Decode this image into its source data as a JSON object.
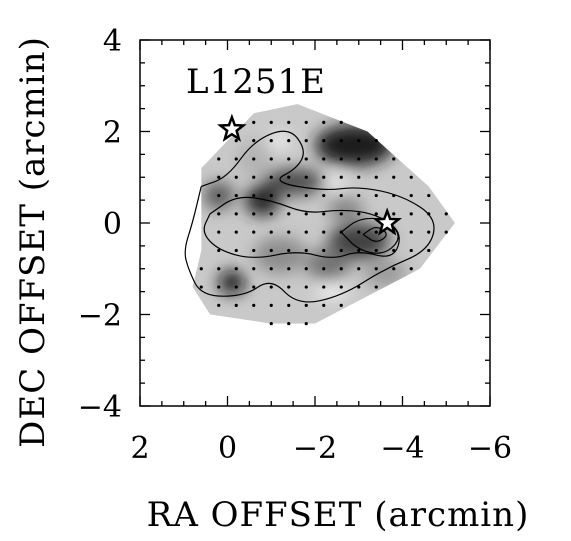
{
  "chart_data": {
    "type": "heatmap",
    "title": "L1251E",
    "xlabel": "RA OFFSET (arcmin)",
    "ylabel": "DEC OFFSET (arcmin)",
    "xlim": [
      2,
      -6
    ],
    "ylim": [
      -4,
      4
    ],
    "xticks": [
      2,
      0,
      -2,
      -4,
      -6
    ],
    "yticks": [
      4,
      2,
      0,
      -2,
      -4
    ],
    "xtick_labels": [
      "2",
      "0",
      "−2",
      "−4",
      "−6"
    ],
    "ytick_labels": [
      "4",
      "2",
      "0",
      "−2",
      "−4"
    ],
    "colormap": "grayscale",
    "map_outline": [
      [
        0.6,
        1.2
      ],
      [
        -0.6,
        2.4
      ],
      [
        -1.6,
        2.6
      ],
      [
        -3.2,
        2.0
      ],
      [
        -4.6,
        0.8
      ],
      [
        -5.2,
        0.0
      ],
      [
        -4.4,
        -1.0
      ],
      [
        -2.0,
        -2.2
      ],
      [
        -1.0,
        -2.2
      ],
      [
        0.4,
        -2.0
      ],
      [
        0.8,
        -1.4
      ],
      [
        0.6,
        -0.6
      ],
      [
        0.6,
        0.4
      ]
    ],
    "dark_patches": [
      {
        "x": -2.9,
        "y": 1.7,
        "rx": 0.9,
        "ry": 0.45,
        "level": 0.12
      },
      {
        "x": -1.5,
        "y": 0.9,
        "rx": 0.7,
        "ry": 0.3,
        "level": 0.3
      },
      {
        "x": -0.8,
        "y": 0.5,
        "rx": 0.4,
        "ry": 0.35,
        "level": 0.15
      },
      {
        "x": 0.2,
        "y": 0.6,
        "rx": 0.35,
        "ry": 0.3,
        "level": 0.35
      },
      {
        "x": -3.0,
        "y": -0.4,
        "rx": 0.7,
        "ry": 0.4,
        "level": 0.25
      },
      {
        "x": -0.1,
        "y": -1.3,
        "rx": 0.3,
        "ry": 0.25,
        "level": 0.05
      },
      {
        "x": -2.3,
        "y": -0.9,
        "rx": 0.5,
        "ry": 0.35,
        "level": 0.45
      },
      {
        "x": -1.2,
        "y": -0.7,
        "rx": 0.6,
        "ry": 0.4,
        "level": 0.55
      },
      {
        "x": -3.6,
        "y": -1.1,
        "rx": 0.5,
        "ry": 0.3,
        "level": 0.6
      },
      {
        "x": -0.6,
        "y": 1.4,
        "rx": 0.4,
        "ry": 0.4,
        "level": 0.7
      },
      {
        "x": -2.7,
        "y": 0.3,
        "rx": 0.4,
        "ry": 0.25,
        "level": 0.5
      }
    ],
    "light_patches": [
      {
        "x": -2.5,
        "y": 0.9,
        "rx": 0.2,
        "ry": 0.12
      },
      {
        "x": -2.4,
        "y": -1.5,
        "rx": 0.4,
        "ry": 0.12
      },
      {
        "x": -1.2,
        "y": 1.8,
        "rx": 0.2,
        "ry": 0.15
      }
    ],
    "contours": [
      [
        [
          0.6,
          0.8
        ],
        [
          0.0,
          1.0
        ],
        [
          -0.6,
          1.8
        ],
        [
          -1.4,
          2.1
        ],
        [
          -1.8,
          1.6
        ],
        [
          -1.6,
          1.2
        ],
        [
          -1.0,
          0.9
        ],
        [
          -2.2,
          0.7
        ],
        [
          -3.0,
          0.8
        ],
        [
          -4.0,
          0.6
        ],
        [
          -4.8,
          0.1
        ],
        [
          -4.6,
          -0.6
        ],
        [
          -3.6,
          -1.0
        ],
        [
          -2.6,
          -1.6
        ],
        [
          -1.6,
          -1.8
        ],
        [
          -1.0,
          -1.2
        ],
        [
          -0.4,
          -1.6
        ],
        [
          0.6,
          -1.6
        ],
        [
          0.9,
          -1.0
        ],
        [
          1.0,
          -0.6
        ],
        [
          0.8,
          0.0
        ],
        [
          0.6,
          0.8
        ]
      ],
      [
        [
          0.4,
          0.2
        ],
        [
          -0.2,
          0.6
        ],
        [
          -1.0,
          0.5
        ],
        [
          -1.8,
          0.2
        ],
        [
          -2.6,
          0.3
        ],
        [
          -3.4,
          0.2
        ],
        [
          -4.0,
          -0.2
        ],
        [
          -3.8,
          -0.8
        ],
        [
          -3.0,
          -0.6
        ],
        [
          -2.4,
          -0.8
        ],
        [
          -1.6,
          -0.6
        ],
        [
          -0.6,
          -0.8
        ],
        [
          0.2,
          -0.6
        ],
        [
          0.6,
          -0.2
        ],
        [
          0.4,
          0.2
        ]
      ],
      [
        [
          -2.6,
          -0.2
        ],
        [
          -3.0,
          0.1
        ],
        [
          -3.6,
          0.1
        ],
        [
          -4.0,
          -0.3
        ],
        [
          -3.6,
          -0.7
        ],
        [
          -3.0,
          -0.6
        ],
        [
          -2.6,
          -0.2
        ]
      ],
      [
        [
          -3.1,
          -0.25
        ],
        [
          -3.4,
          -0.05
        ],
        [
          -3.7,
          -0.25
        ],
        [
          -3.4,
          -0.45
        ],
        [
          -3.1,
          -0.25
        ]
      ]
    ],
    "sample_grid_spacing": 0.4,
    "stars": [
      {
        "x": -0.1,
        "y": 2.05,
        "fill": "#ffffff",
        "stroke": "#000000"
      },
      {
        "x": -3.65,
        "y": 0.0,
        "fill": "#ffffff",
        "stroke": "#000000"
      }
    ],
    "colors": {
      "background": "#ffffff",
      "axes": "#000000",
      "contour": "#000000"
    }
  }
}
